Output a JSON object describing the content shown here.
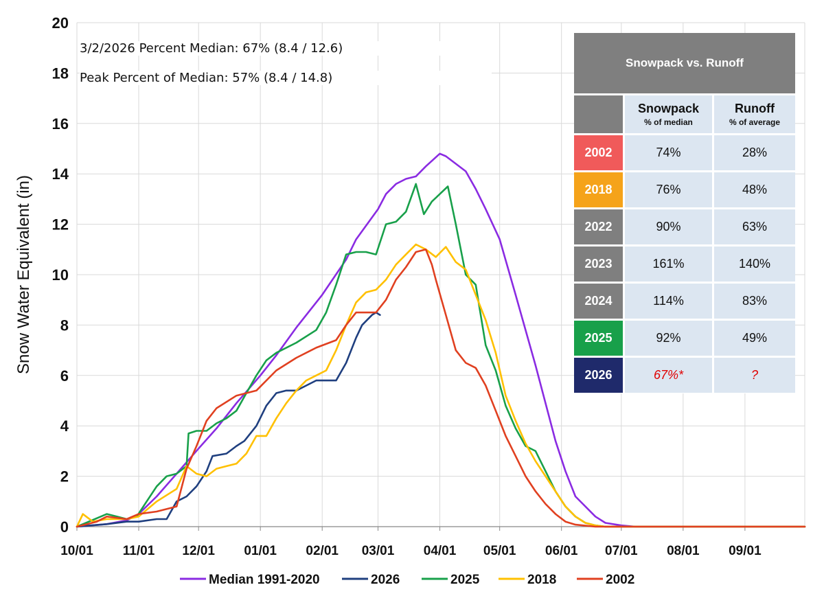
{
  "chart_data": {
    "type": "line",
    "title": "",
    "ylabel": "Snow Water Equivalent (in)",
    "xlabel": "",
    "ylim": [
      0,
      20
    ],
    "xlim_days": [
      0,
      365
    ],
    "y_ticks": [
      "0",
      "2",
      "4",
      "6",
      "8",
      "10",
      "12",
      "14",
      "16",
      "18",
      "20"
    ],
    "x_ticks": [
      {
        "label": "10/01",
        "day": 0
      },
      {
        "label": "11/01",
        "day": 31
      },
      {
        "label": "12/01",
        "day": 61
      },
      {
        "label": "01/01",
        "day": 92
      },
      {
        "label": "02/01",
        "day": 123
      },
      {
        "label": "03/01",
        "day": 151
      },
      {
        "label": "04/01",
        "day": 182
      },
      {
        "label": "05/01",
        "day": 212
      },
      {
        "label": "06/01",
        "day": 243
      },
      {
        "label": "07/01",
        "day": 273
      },
      {
        "label": "08/01",
        "day": 304
      },
      {
        "label": "09/01",
        "day": 335
      }
    ],
    "grid": true,
    "legend_position": "bottom",
    "series": [
      {
        "name": "Median 1991-2020",
        "color": "#8a2be2",
        "x": [
          0,
          15,
          25,
          31,
          40,
          50,
          61,
          70,
          80,
          92,
          100,
          110,
          123,
          135,
          140,
          151,
          155,
          160,
          165,
          170,
          175,
          182,
          185,
          190,
          195,
          200,
          205,
          212,
          220,
          230,
          240,
          245,
          250,
          260,
          265,
          273,
          280,
          300,
          340,
          365
        ],
        "values": [
          0,
          0.1,
          0.25,
          0.5,
          1.2,
          2.1,
          3.1,
          3.9,
          4.9,
          6.0,
          6.8,
          7.9,
          9.2,
          10.6,
          11.4,
          12.6,
          13.2,
          13.6,
          13.8,
          13.9,
          14.3,
          14.8,
          14.7,
          14.4,
          14.1,
          13.4,
          12.6,
          11.4,
          9.2,
          6.4,
          3.4,
          2.2,
          1.2,
          0.4,
          0.15,
          0.05,
          0,
          0,
          0,
          0
        ]
      },
      {
        "name": "2026",
        "color": "#1f3f7f",
        "x": [
          0,
          15,
          25,
          31,
          40,
          45,
          50,
          55,
          60,
          65,
          68,
          75,
          80,
          84,
          90,
          95,
          100,
          105,
          110,
          115,
          120,
          125,
          130,
          135,
          140,
          143,
          148,
          150,
          152
        ],
        "values": [
          0,
          0.1,
          0.2,
          0.2,
          0.3,
          0.3,
          1.0,
          1.2,
          1.6,
          2.2,
          2.8,
          2.9,
          3.2,
          3.4,
          4.0,
          4.8,
          5.3,
          5.4,
          5.4,
          5.6,
          5.8,
          5.8,
          5.8,
          6.5,
          7.5,
          8.0,
          8.4,
          8.5,
          8.4
        ]
      },
      {
        "name": "2025",
        "color": "#18a04a",
        "x": [
          0,
          15,
          20,
          25,
          30,
          35,
          40,
          45,
          50,
          55,
          56,
          60,
          65,
          70,
          75,
          80,
          85,
          90,
          95,
          100,
          110,
          120,
          125,
          130,
          135,
          140,
          145,
          150,
          155,
          160,
          165,
          170,
          174,
          178,
          182,
          186,
          190,
          195,
          200,
          205,
          210,
          215,
          220,
          225,
          230,
          235,
          240,
          245,
          250,
          255,
          260,
          265,
          270,
          280,
          300,
          365
        ],
        "values": [
          0,
          0.5,
          0.4,
          0.3,
          0.4,
          1.0,
          1.6,
          2.0,
          2.1,
          2.4,
          3.7,
          3.8,
          3.8,
          4.1,
          4.3,
          4.6,
          5.3,
          6.0,
          6.6,
          6.9,
          7.3,
          7.8,
          8.5,
          9.6,
          10.8,
          10.9,
          10.9,
          10.8,
          12.0,
          12.1,
          12.5,
          13.6,
          12.4,
          12.9,
          13.2,
          13.5,
          12.0,
          10.0,
          9.6,
          7.2,
          6.2,
          4.8,
          3.9,
          3.2,
          3.0,
          2.2,
          1.4,
          0.8,
          0.4,
          0.15,
          0.05,
          0,
          0,
          0,
          0,
          0
        ]
      },
      {
        "name": "2018",
        "color": "#ffc000",
        "x": [
          0,
          3,
          8,
          15,
          25,
          31,
          40,
          50,
          55,
          60,
          65,
          70,
          75,
          80,
          85,
          90,
          95,
          100,
          105,
          110,
          115,
          120,
          125,
          130,
          135,
          140,
          145,
          150,
          155,
          160,
          165,
          170,
          175,
          180,
          185,
          190,
          195,
          200,
          205,
          210,
          215,
          220,
          225,
          230,
          235,
          240,
          245,
          250,
          255,
          260,
          265,
          270,
          280,
          300,
          365
        ],
        "values": [
          0,
          0.5,
          0.2,
          0.3,
          0.3,
          0.4,
          1.0,
          1.5,
          2.4,
          2.1,
          2.0,
          2.3,
          2.4,
          2.5,
          2.9,
          3.6,
          3.6,
          4.3,
          4.9,
          5.4,
          5.8,
          6.0,
          6.2,
          7.0,
          8.0,
          8.9,
          9.3,
          9.4,
          9.8,
          10.4,
          10.8,
          11.2,
          11.0,
          10.7,
          11.1,
          10.5,
          10.2,
          9.2,
          8.2,
          6.9,
          5.2,
          4.2,
          3.3,
          2.6,
          2.0,
          1.4,
          0.8,
          0.4,
          0.15,
          0.05,
          0,
          0,
          0,
          0,
          0
        ]
      },
      {
        "name": "2002",
        "color": "#e04020",
        "x": [
          0,
          10,
          15,
          25,
          31,
          40,
          50,
          55,
          60,
          65,
          70,
          80,
          90,
          100,
          110,
          120,
          130,
          135,
          140,
          145,
          150,
          155,
          160,
          165,
          170,
          175,
          178,
          180,
          185,
          190,
          195,
          200,
          205,
          210,
          215,
          220,
          225,
          230,
          235,
          240,
          245,
          250,
          260,
          270,
          365
        ],
        "values": [
          0,
          0.2,
          0.4,
          0.3,
          0.5,
          0.6,
          0.8,
          2.3,
          3.2,
          4.2,
          4.7,
          5.2,
          5.4,
          6.2,
          6.7,
          7.1,
          7.4,
          8.0,
          8.5,
          8.5,
          8.5,
          9.0,
          9.8,
          10.3,
          10.9,
          11.0,
          10.4,
          9.8,
          8.4,
          7.0,
          6.5,
          6.3,
          5.6,
          4.6,
          3.6,
          2.8,
          2.0,
          1.4,
          0.9,
          0.5,
          0.2,
          0.08,
          0,
          0,
          0
        ]
      }
    ]
  },
  "info": {
    "line1": "3/2/2026 Percent Median: 67% (8.4 / 12.6)",
    "line2": "Peak Percent of Median: 57% (8.4 / 14.8)"
  },
  "table": {
    "title": "Snowpack vs. Runoff",
    "col1_title": "Snowpack",
    "col1_sub": "% of median",
    "col2_title": "Runoff",
    "col2_sub": "% of average",
    "rows": [
      {
        "year": "2002",
        "snowpack": "74%",
        "runoff": "28%",
        "color": "#f05a5a"
      },
      {
        "year": "2018",
        "snowpack": "76%",
        "runoff": "48%",
        "color": "#f5a31a"
      },
      {
        "year": "2022",
        "snowpack": "90%",
        "runoff": "63%",
        "color": "#7f7f7f"
      },
      {
        "year": "2023",
        "snowpack": "161%",
        "runoff": "140%",
        "color": "#7f7f7f"
      },
      {
        "year": "2024",
        "snowpack": "114%",
        "runoff": "83%",
        "color": "#7f7f7f"
      },
      {
        "year": "2025",
        "snowpack": "92%",
        "runoff": "49%",
        "color": "#18a04a"
      },
      {
        "year": "2026",
        "snowpack": "67%*",
        "runoff": "?",
        "color": "#1f2a6b",
        "highlight": true
      }
    ]
  }
}
